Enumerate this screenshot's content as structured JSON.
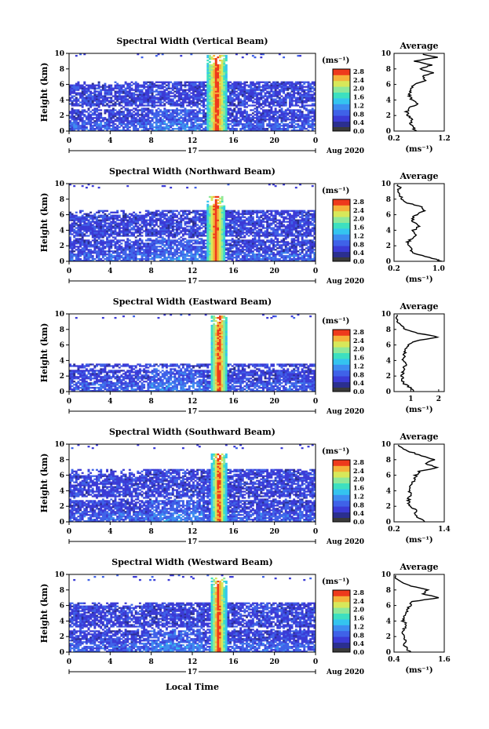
{
  "figure": {
    "colorbar_unit": "(ms⁻¹)",
    "colorbar_ticks": [
      "2.8",
      "2.4",
      "2.0",
      "1.6",
      "1.2",
      "0.8",
      "0.4",
      "0.0"
    ],
    "xticks": [
      "0",
      "4",
      "8",
      "12",
      "16",
      "20",
      "0"
    ],
    "day_label": "17",
    "date_label": "Aug 2020",
    "xlabel": "Local Time",
    "ylabel": "Height (km)",
    "yticks": [
      "0",
      "2",
      "4",
      "6",
      "8",
      "10"
    ],
    "avg_title": "Average",
    "avg_xlabel": "(ms⁻¹)",
    "colors": {
      "scale": [
        "#2b2f8f",
        "#3b3bd6",
        "#3f62e8",
        "#3d8df0",
        "#34c4ef",
        "#3de0c0",
        "#8ee89a",
        "#d7e85a",
        "#f5b23a",
        "#ee3a1c"
      ],
      "zero": "#3a3a3a"
    }
  },
  "chart_data": [
    {
      "type": "heatmap",
      "title": "Spectral Width (Vertical Beam)",
      "xlabel": "",
      "ylabel": "Height (km)",
      "xlim": [
        0,
        24
      ],
      "ylim": [
        0,
        10
      ],
      "zlim": [
        0,
        3.0
      ],
      "features": {
        "layer_top_km": 6.4,
        "upper_gap_km": [
          6.5,
          9.5
        ],
        "storm_start_h": 13.4,
        "storm_end_h": 15.4,
        "storm_top_km": 9.8
      },
      "average": {
        "xticks": [
          "0.2",
          "1.2"
        ],
        "xlim": [
          0.2,
          1.2
        ],
        "height_km": [
          0,
          0.5,
          1,
          1.5,
          2,
          2.5,
          3,
          3.5,
          4,
          4.5,
          5,
          5.5,
          6,
          6.5,
          7,
          7.5,
          8,
          8.5,
          9,
          9.5,
          10
        ],
        "value": [
          0.62,
          0.58,
          0.52,
          0.55,
          0.48,
          0.45,
          0.5,
          0.7,
          0.55,
          0.5,
          0.52,
          0.55,
          0.6,
          0.85,
          0.75,
          1.0,
          0.7,
          0.95,
          0.6,
          1.05,
          0.7
        ]
      }
    },
    {
      "type": "heatmap",
      "title": "Spectral Width (Northward Beam)",
      "xlabel": "",
      "ylabel": "Height (km)",
      "xlim": [
        0,
        24
      ],
      "ylim": [
        0,
        10
      ],
      "zlim": [
        0,
        3.0
      ],
      "features": {
        "layer_top_km": 6.6,
        "upper_gap_km": [
          6.8,
          9.5
        ],
        "storm_start_h": 13.4,
        "storm_end_h": 15.2,
        "storm_top_km": 8.4
      },
      "average": {
        "xticks": [
          "0.2",
          "1.0"
        ],
        "xlim": [
          0.2,
          1.1
        ],
        "height_km": [
          0,
          0.5,
          1,
          1.5,
          2,
          2.5,
          3,
          3.5,
          4,
          4.5,
          5,
          5.5,
          6,
          6.5,
          7,
          7.5,
          8,
          8.5,
          9,
          9.5,
          10
        ],
        "value": [
          1.05,
          0.85,
          0.55,
          0.5,
          0.48,
          0.45,
          0.52,
          0.6,
          0.55,
          0.65,
          0.55,
          0.52,
          0.6,
          0.75,
          0.7,
          0.45,
          0.35,
          0.3,
          0.28,
          0.3,
          0.25
        ]
      }
    },
    {
      "type": "heatmap",
      "title": "Spectral Width (Eastward Beam)",
      "xlabel": "",
      "ylabel": "Height (km)",
      "xlim": [
        0,
        24
      ],
      "ylim": [
        0,
        10
      ],
      "zlim": [
        0,
        3.0
      ],
      "features": {
        "layer_top_km": 3.5,
        "upper_gap_km": [
          7.0,
          9.5
        ],
        "storm_start_h": 13.8,
        "storm_end_h": 15.4,
        "storm_top_km": 9.8
      },
      "average": {
        "xticks": [
          "1",
          "2"
        ],
        "xlim": [
          0.4,
          2.2
        ],
        "height_km": [
          0,
          0.5,
          1,
          1.5,
          2,
          2.5,
          3,
          3.5,
          4,
          4.5,
          5,
          5.5,
          6,
          6.5,
          7,
          7.5,
          8,
          8.5,
          9,
          9.5,
          10
        ],
        "value": [
          1.1,
          1.0,
          0.75,
          0.7,
          0.68,
          0.72,
          0.75,
          0.85,
          0.7,
          0.75,
          0.8,
          0.85,
          0.9,
          1.15,
          2.0,
          1.25,
          0.8,
          0.65,
          0.55,
          0.5,
          0.45
        ]
      }
    },
    {
      "type": "heatmap",
      "title": "Spectral Width (Southward Beam)",
      "xlabel": "",
      "ylabel": "Height (km)",
      "xlim": [
        0,
        24
      ],
      "ylim": [
        0,
        10
      ],
      "zlim": [
        0,
        3.0
      ],
      "features": {
        "layer_top_km": 6.7,
        "upper_gap_km": [
          7.0,
          9.5
        ],
        "storm_start_h": 13.9,
        "storm_end_h": 15.3,
        "storm_top_km": 8.8
      },
      "average": {
        "xticks": [
          "0.2",
          "1.4"
        ],
        "xlim": [
          0.2,
          1.4
        ],
        "height_km": [
          0,
          0.5,
          1,
          1.5,
          2,
          2.5,
          3,
          3.5,
          4,
          4.5,
          5,
          5.5,
          6,
          6.5,
          7,
          7.5,
          8,
          8.5,
          9,
          9.5,
          10
        ],
        "value": [
          0.95,
          0.8,
          0.7,
          0.72,
          0.6,
          0.55,
          0.55,
          0.62,
          0.55,
          0.6,
          0.65,
          0.7,
          0.72,
          0.8,
          1.25,
          0.95,
          1.15,
          0.85,
          0.6,
          0.4,
          0.3
        ]
      }
    },
    {
      "type": "heatmap",
      "title": "Spectral Width (Westward Beam)",
      "xlabel": "Local Time",
      "ylabel": "Height (km)",
      "xlim": [
        0,
        24
      ],
      "ylim": [
        0,
        10
      ],
      "zlim": [
        0,
        3.0
      ],
      "features": {
        "layer_top_km": 6.4,
        "upper_gap_km": [
          7.0,
          9.2
        ],
        "storm_start_h": 13.8,
        "storm_end_h": 15.3,
        "storm_top_km": 9.6
      },
      "average": {
        "xticks": [
          "0.4",
          "1.6"
        ],
        "xlim": [
          0.4,
          1.6
        ],
        "height_km": [
          0,
          0.5,
          1,
          1.5,
          2,
          2.5,
          3,
          3.5,
          4,
          4.5,
          5,
          5.5,
          6,
          6.5,
          7,
          7.5,
          8,
          8.5,
          9,
          9.5,
          10
        ],
        "value": [
          0.78,
          0.7,
          0.65,
          0.68,
          0.62,
          0.6,
          0.65,
          0.7,
          0.62,
          0.65,
          0.7,
          0.72,
          0.78,
          0.85,
          1.45,
          1.1,
          1.2,
          0.8,
          0.6,
          0.45,
          0.4
        ]
      }
    }
  ]
}
